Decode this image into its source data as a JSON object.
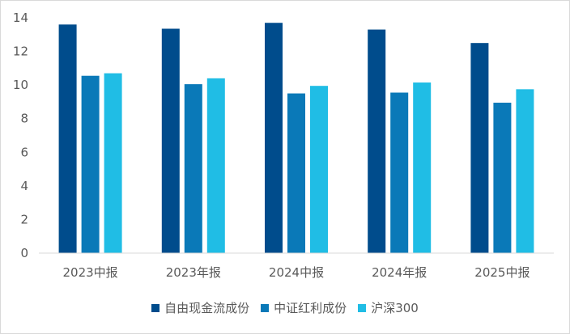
{
  "chart_data": {
    "type": "bar",
    "title": "",
    "xlabel": "",
    "ylabel": "",
    "ylim": [
      0,
      14
    ],
    "yticks": [
      0,
      2,
      4,
      6,
      8,
      10,
      12,
      14
    ],
    "grid": false,
    "legend_position": "bottom",
    "categories": [
      "2023中报",
      "2023年报",
      "2024中报",
      "2024年报",
      "2025中报"
    ],
    "series": [
      {
        "name": "自由现金流成份",
        "color": "#004c8c",
        "values": [
          13.6,
          13.35,
          13.7,
          13.3,
          12.5
        ]
      },
      {
        "name": "中证红利成份",
        "color": "#0a79b8",
        "values": [
          10.55,
          10.05,
          9.5,
          9.55,
          8.95
        ]
      },
      {
        "name": "沪深300",
        "color": "#20bde5",
        "values": [
          10.7,
          10.4,
          9.95,
          10.15,
          9.75
        ]
      }
    ]
  }
}
